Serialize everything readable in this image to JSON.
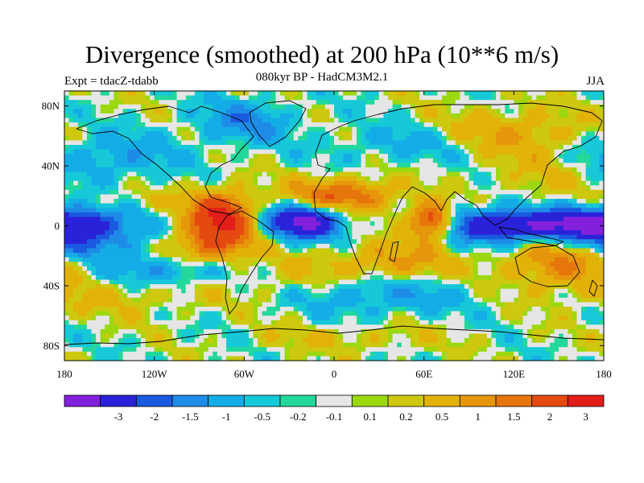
{
  "chart_data": {
    "type": "heatmap",
    "title": "Divergence (smoothed) at 200 hPa (10**6 m/s)",
    "subtitle": "080kyr BP - HadCM3M2.1",
    "left_label": "Expt = tdacZ-tdabb",
    "right_label": "JJA",
    "xlim": [
      -180,
      180
    ],
    "ylim": [
      -90,
      90
    ],
    "x_ticks": [
      {
        "value": -180,
        "label": "180"
      },
      {
        "value": -120,
        "label": "120W"
      },
      {
        "value": -60,
        "label": "60W"
      },
      {
        "value": 0,
        "label": "0"
      },
      {
        "value": 60,
        "label": "60E"
      },
      {
        "value": 120,
        "label": "120E"
      },
      {
        "value": 180,
        "label": "180"
      }
    ],
    "y_ticks": [
      {
        "value": 80,
        "label": "80N"
      },
      {
        "value": 40,
        "label": "40N"
      },
      {
        "value": 0,
        "label": "0"
      },
      {
        "value": -40,
        "label": "40S"
      },
      {
        "value": -80,
        "label": "80S"
      }
    ],
    "color_levels": [
      {
        "color": "#8220dc",
        "label": ""
      },
      {
        "color": "#2a22d8",
        "label": "-3"
      },
      {
        "color": "#1a5ae0",
        "label": "-2"
      },
      {
        "color": "#1e8ce6",
        "label": "-1.5"
      },
      {
        "color": "#14ace6",
        "label": "-1"
      },
      {
        "color": "#16c8d8",
        "label": "-0.5"
      },
      {
        "color": "#22d89c",
        "label": "-0.2"
      },
      {
        "color": "#e6e6e6",
        "label": "-0.1"
      },
      {
        "color": "#9cd810",
        "label": "0.1"
      },
      {
        "color": "#cec80e",
        "label": "0.2"
      },
      {
        "color": "#e2b208",
        "label": "0.5"
      },
      {
        "color": "#e6960a",
        "label": "1"
      },
      {
        "color": "#e6760c",
        "label": "1.5"
      },
      {
        "color": "#e44a10",
        "label": "2"
      },
      {
        "color": "#e21e1a",
        "label": "3"
      }
    ],
    "field_features": [
      {
        "lon": -20,
        "lat": 3,
        "value": -3.4,
        "rlon": 18,
        "rlat": 8
      },
      {
        "lon": 105,
        "lat": 0,
        "value": -2.6,
        "rlon": 25,
        "rlat": 8
      },
      {
        "lon": 155,
        "lat": 0,
        "value": -2.4,
        "rlon": 25,
        "rlat": 7
      },
      {
        "lon": -170,
        "lat": 5,
        "value": -1.6,
        "rlon": 28,
        "rlat": 7
      },
      {
        "lon": -165,
        "lat": -10,
        "value": -1.8,
        "rlon": 25,
        "rlat": 8
      },
      {
        "lon": -115,
        "lat": -30,
        "value": -1.2,
        "rlon": 30,
        "rlat": 8
      },
      {
        "lon": 30,
        "lat": -45,
        "value": -1.0,
        "rlon": 40,
        "rlat": 10
      },
      {
        "lon": -60,
        "lat": 70,
        "value": -1.2,
        "rlon": 22,
        "rlat": 10
      },
      {
        "lon": 60,
        "lat": 55,
        "value": -0.8,
        "rlon": 40,
        "rlat": 10
      },
      {
        "lon": -150,
        "lat": 45,
        "value": -0.9,
        "rlon": 35,
        "rlat": 12
      },
      {
        "lon": -75,
        "lat": 5,
        "value": 3.2,
        "rlon": 15,
        "rlat": 12
      },
      {
        "lon": 65,
        "lat": 3,
        "value": 3.1,
        "rlon": 10,
        "rlat": 8
      },
      {
        "lon": 5,
        "lat": 20,
        "value": 2.1,
        "rlon": 25,
        "rlat": 8
      },
      {
        "lon": -85,
        "lat": -15,
        "value": 1.5,
        "rlon": 20,
        "rlat": 8
      },
      {
        "lon": 40,
        "lat": -25,
        "value": 1.2,
        "rlon": 30,
        "rlat": 10
      },
      {
        "lon": 150,
        "lat": -25,
        "value": 1.5,
        "rlon": 25,
        "rlat": 12
      },
      {
        "lon": 115,
        "lat": 60,
        "value": 1.2,
        "rlon": 35,
        "rlat": 12
      },
      {
        "lon": -140,
        "lat": -45,
        "value": 0.6,
        "rlon": 40,
        "rlat": 10
      },
      {
        "lon": 140,
        "lat": 30,
        "value": 0.5,
        "rlon": 25,
        "rlat": 10
      },
      {
        "lon": -30,
        "lat": -35,
        "value": 0.5,
        "rlon": 25,
        "rlat": 10
      },
      {
        "lon": 10,
        "lat": -75,
        "value": 0.5,
        "rlon": 40,
        "rlat": 6
      },
      {
        "lon": -130,
        "lat": 15,
        "value": 0.4,
        "rlon": 30,
        "rlat": 8
      }
    ]
  }
}
